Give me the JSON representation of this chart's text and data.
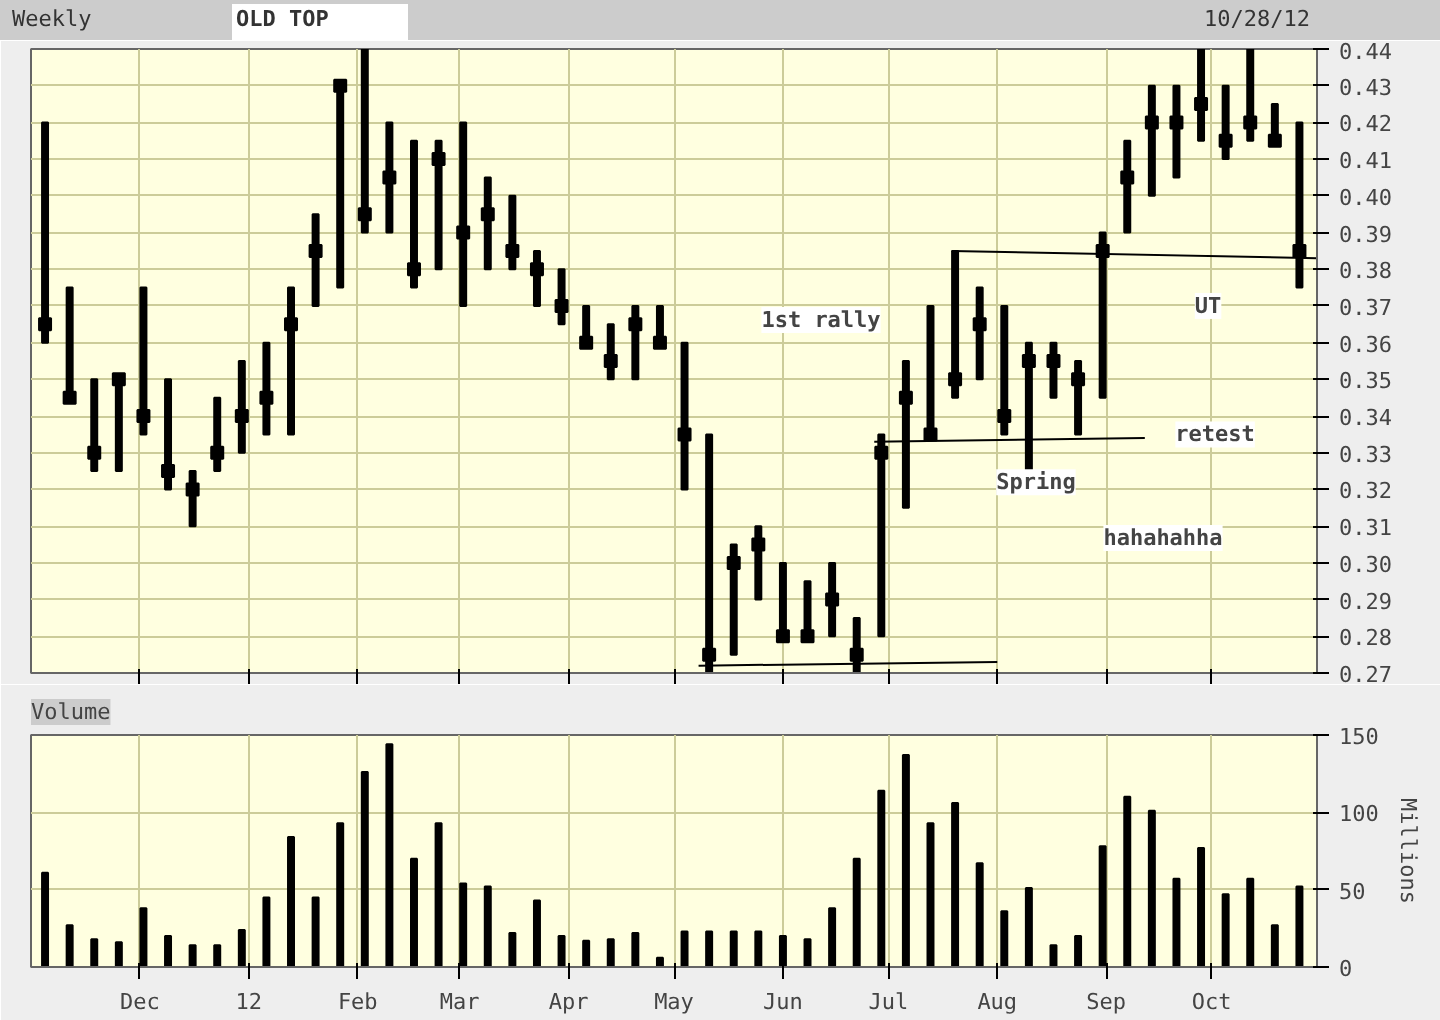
{
  "chart_data": [
    {
      "type": "bar",
      "title": "Weekly",
      "color": "#000000",
      "annotations": [
        "OLD TOP",
        "10/28/12",
        "1st rally",
        "hahahahha",
        {
          "text": "Spring",
          "x": "2012-08-12",
          "y": 0.322
        },
        {
          "text": "retest",
          "x": "2012-10-02",
          "y": 0.335
        },
        {
          "text": "UT",
          "x": "2012-09-30",
          "y": 0.37
        }
      ],
      "x": [
        "2011-11-04",
        "2011-11-11",
        "2011-11-18",
        "2011-11-25",
        "2011-12-02",
        "2011-12-09",
        "2011-12-16",
        "2011-12-23",
        "2011-12-30",
        "2012-01-06",
        "2012-01-13",
        "2012-01-20",
        "2012-01-27",
        "2012-02-03",
        "2012-02-10",
        "2012-02-17",
        "2012-02-24",
        "2012-03-02",
        "2012-03-09",
        "2012-03-16",
        "2012-03-23",
        "2012-03-30",
        "2012-04-06",
        "2012-04-13",
        "2012-04-20",
        "2012-04-27",
        "2012-05-04",
        "2012-05-11",
        "2012-05-18",
        "2012-05-25",
        "2012-06-01",
        "2012-06-08",
        "2012-06-15",
        "2012-06-22",
        "2012-06-29",
        "2012-07-06",
        "2012-07-13",
        "2012-07-20",
        "2012-07-27",
        "2012-08-03",
        "2012-08-10",
        "2012-08-17",
        "2012-08-24",
        "2012-08-31",
        "2012-09-07",
        "2012-09-14",
        "2012-09-21",
        "2012-09-28",
        "2012-10-05",
        "2012-10-12",
        "2012-10-19",
        "2012-10-26"
      ],
      "base": [
        0.36,
        0.345,
        0.325,
        0.325,
        0.335,
        0.32,
        0.31,
        0.325,
        0.33,
        0.335,
        0.335,
        0.37,
        0.375,
        0.39,
        0.39,
        0.375,
        0.38,
        0.37,
        0.38,
        0.38,
        0.37,
        0.365,
        0.36,
        0.35,
        0.35,
        0.36,
        0.32,
        0.27,
        0.275,
        0.29,
        0.28,
        0.28,
        0.28,
        0.27,
        0.28,
        0.315,
        0.335,
        0.345,
        0.35,
        0.335,
        0.325,
        0.345,
        0.335,
        0.345,
        0.39,
        0.4,
        0.405,
        0.415,
        0.41,
        0.415,
        0.415,
        0.375
      ],
      "values": [
        0.06,
        0.03,
        0.025,
        0.025,
        0.04,
        0.03,
        0.015,
        0.02,
        0.025,
        0.025,
        0.04,
        0.025,
        0.055,
        0.05,
        0.03,
        0.04,
        0.035,
        0.05,
        0.025,
        0.02,
        0.015,
        0.015,
        0.01,
        0.015,
        0.02,
        0.01,
        0.04,
        0.065,
        0.03,
        0.02,
        0.02,
        0.015,
        0.02,
        0.015,
        0.055,
        0.04,
        0.035,
        0.04,
        0.025,
        0.035,
        0.035,
        0.015,
        0.02,
        0.045,
        0.025,
        0.03,
        0.025,
        0.025,
        0.02,
        0.025,
        0.01,
        0.045
      ],
      "series": [
        {
          "type": "scatter",
          "color": "#000000",
          "marker": "square",
          "x": [
            "2011-11-04",
            "2011-11-11",
            "2011-11-18",
            "2011-11-25",
            "2011-12-02",
            "2011-12-09",
            "2011-12-16",
            "2011-12-23",
            "2011-12-30",
            "2012-01-06",
            "2012-01-13",
            "2012-01-20",
            "2012-01-27",
            "2012-02-03",
            "2012-02-10",
            "2012-02-17",
            "2012-02-24",
            "2012-03-02",
            "2012-03-09",
            "2012-03-16",
            "2012-03-23",
            "2012-03-30",
            "2012-04-06",
            "2012-04-13",
            "2012-04-20",
            "2012-04-27",
            "2012-05-04",
            "2012-05-11",
            "2012-05-18",
            "2012-05-25",
            "2012-06-01",
            "2012-06-08",
            "2012-06-15",
            "2012-06-22",
            "2012-06-29",
            "2012-07-06",
            "2012-07-13",
            "2012-07-20",
            "2012-07-27",
            "2012-08-03",
            "2012-08-10",
            "2012-08-17",
            "2012-08-24",
            "2012-08-31",
            "2012-09-07",
            "2012-09-14",
            "2012-09-21",
            "2012-09-28",
            "2012-10-05",
            "2012-10-12",
            "2012-10-19",
            "2012-10-26"
          ],
          "values": [
            0.365,
            0.345,
            0.33,
            0.35,
            0.34,
            0.325,
            0.32,
            0.33,
            0.34,
            0.345,
            0.365,
            0.385,
            0.43,
            0.395,
            0.405,
            0.38,
            0.41,
            0.39,
            0.395,
            0.385,
            0.38,
            0.37,
            0.36,
            0.355,
            0.365,
            0.36,
            0.335,
            0.275,
            0.3,
            0.305,
            0.28,
            0.28,
            0.29,
            0.275,
            0.33,
            0.345,
            0.335,
            0.35,
            0.365,
            0.34,
            0.355,
            0.355,
            0.35,
            0.385,
            0.405,
            0.42,
            0.42,
            0.425,
            0.415,
            0.42,
            0.415,
            0.385
          ]
        },
        {
          "type": "line",
          "color": "#000000",
          "x": [
            "2012-05-08",
            "2012-08-01"
          ],
          "values": [
            0.272,
            0.273
          ]
        },
        {
          "type": "line",
          "color": "#000000",
          "x": [
            "2012-06-27",
            "2012-09-12"
          ],
          "values": [
            0.333,
            0.334
          ]
        },
        {
          "type": "line",
          "color": "#000000",
          "x": [
            "2012-07-19",
            "2012-10-31"
          ],
          "values": [
            0.385,
            0.383
          ]
        }
      ],
      "xlim": [
        "2011-10-31",
        "2012-10-31"
      ],
      "xticks": [
        {
          "value": "2011-12-01",
          "label": null
        },
        {
          "value": "2012-01-01",
          "label": null
        },
        {
          "value": "2012-02-01",
          "label": null
        },
        {
          "value": "2012-03-01",
          "label": null
        },
        {
          "value": "2012-04-01",
          "label": null
        },
        {
          "value": "2012-05-01",
          "label": null
        },
        {
          "value": "2012-06-01",
          "label": null
        },
        {
          "value": "2012-07-01",
          "label": null
        },
        {
          "value": "2012-08-01",
          "label": null
        },
        {
          "value": "2012-09-01",
          "label": null
        },
        {
          "value": "2012-10-01",
          "label": null
        }
      ],
      "ylim": [
        0.27,
        0.44
      ],
      "yticks": [
        0.27,
        0.28,
        0.29,
        {
          "value": 0.3,
          "label": "0.30"
        },
        0.31,
        0.32,
        0.33,
        0.34,
        0.35,
        0.36,
        0.37,
        0.38,
        0.39,
        {
          "value": 0.4,
          "label": "0.40"
        },
        0.41,
        0.42,
        0.43,
        0.44
      ],
      "grid": true,
      "tick_labels": "y"
    },
    {
      "type": "bar",
      "title": "Volume",
      "ylabel": "Millions",
      "color": "#000000",
      "x": [
        "2011-11-04",
        "2011-11-11",
        "2011-11-18",
        "2011-11-25",
        "2011-12-02",
        "2011-12-09",
        "2011-12-16",
        "2011-12-23",
        "2011-12-30",
        "2012-01-06",
        "2012-01-13",
        "2012-01-20",
        "2012-01-27",
        "2012-02-03",
        "2012-02-10",
        "2012-02-17",
        "2012-02-24",
        "2012-03-02",
        "2012-03-09",
        "2012-03-16",
        "2012-03-23",
        "2012-03-30",
        "2012-04-06",
        "2012-04-13",
        "2012-04-20",
        "2012-04-27",
        "2012-05-04",
        "2012-05-11",
        "2012-05-18",
        "2012-05-25",
        "2012-06-01",
        "2012-06-08",
        "2012-06-15",
        "2012-06-22",
        "2012-06-29",
        "2012-07-06",
        "2012-07-13",
        "2012-07-20",
        "2012-07-27",
        "2012-08-03",
        "2012-08-10",
        "2012-08-17",
        "2012-08-24",
        "2012-08-31",
        "2012-09-07",
        "2012-09-14",
        "2012-09-21",
        "2012-09-28",
        "2012-10-05",
        "2012-10-12",
        "2012-10-19",
        "2012-10-26"
      ],
      "values": [
        61,
        27,
        18,
        16,
        38,
        20,
        14,
        14,
        24,
        45,
        84,
        45,
        93,
        126,
        144,
        70,
        93,
        54,
        52,
        22,
        43,
        20,
        17,
        18,
        22,
        6,
        23,
        23,
        23,
        23,
        20,
        18,
        38,
        70,
        114,
        137,
        93,
        106,
        67,
        36,
        51,
        14,
        20,
        78,
        110,
        101,
        57,
        77,
        47,
        57,
        27,
        52
      ],
      "xlim": [
        "2011-10-31",
        "2012-10-31"
      ],
      "xticks": [
        {
          "value": "2011-12-01",
          "label": "Dec"
        },
        {
          "value": "2012-01-01",
          "label": "12"
        },
        {
          "value": "2012-02-01",
          "label": "Feb"
        },
        {
          "value": "2012-03-01",
          "label": "Mar"
        },
        {
          "value": "2012-04-01",
          "label": "Apr"
        },
        {
          "value": "2012-05-01",
          "label": "May"
        },
        {
          "value": "2012-06-01",
          "label": "Jun"
        },
        {
          "value": "2012-07-01",
          "label": "Jul"
        },
        {
          "value": "2012-08-01",
          "label": "Aug"
        },
        {
          "value": "2012-09-01",
          "label": "Sep"
        },
        {
          "value": "2012-10-01",
          "label": "Oct"
        }
      ],
      "ylim": [
        0,
        150
      ],
      "yticks": [
        0,
        50,
        100,
        150
      ],
      "grid": true
    }
  ]
}
